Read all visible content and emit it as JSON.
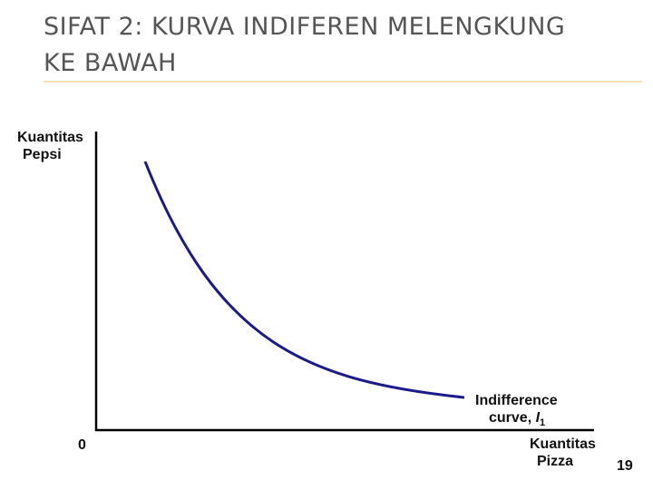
{
  "slide": {
    "title_line1": "SIFAT 2: KURVA INDIFEREN MELENGKUNG",
    "title_line2": "KE BAWAH",
    "page_number": "19"
  },
  "diagram": {
    "y_axis_label_line1": "Kuantitas",
    "y_axis_label_line2": "Pepsi",
    "x_axis_label_line1": "Kuantitas",
    "x_axis_label_line2": "Pizza",
    "origin_label": "0",
    "curve_label_line1": "Indifference",
    "curve_label_line2": "curve, ",
    "curve_label_symbol": "I",
    "curve_label_subscript": "1",
    "curve_color": "#1a1a8c",
    "axis_color": "#000000",
    "title_rule_color": "#f2e3b8"
  }
}
